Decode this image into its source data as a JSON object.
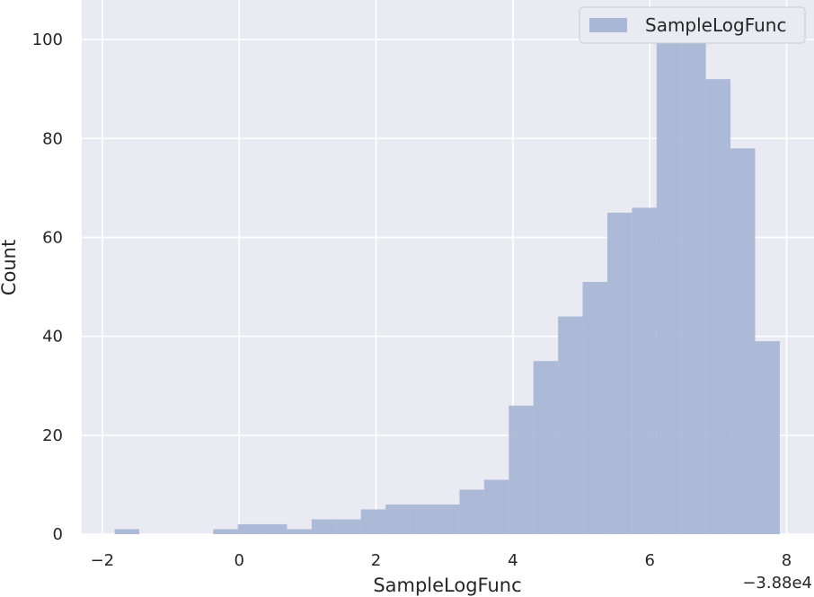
{
  "chart_data": {
    "type": "bar",
    "subtype": "histogram",
    "title": "",
    "xlabel": "SampleLogFunc",
    "ylabel": "Count",
    "x_offset_label": "−3.88e4",
    "xlim": [
      -2.3,
      8.4
    ],
    "ylim": [
      0,
      108
    ],
    "xticks": [
      -2,
      0,
      2,
      4,
      6,
      8
    ],
    "xtick_labels": [
      "−2",
      "0",
      "2",
      "4",
      "6",
      "8"
    ],
    "yticks": [
      0,
      20,
      40,
      60,
      80,
      100
    ],
    "ytick_labels": [
      "0",
      "20",
      "40",
      "60",
      "80",
      "100"
    ],
    "grid": true,
    "legend_position": "top-right",
    "colors": {
      "bar": "#a9b7d6",
      "background": "#eaeaf2",
      "grid": "#ffffff"
    },
    "series": [
      {
        "name": "SampleLogFunc",
        "bin_edges": [
          -1.82,
          -1.46,
          -1.1,
          -0.74,
          -0.38,
          -0.02,
          0.34,
          0.7,
          1.06,
          1.42,
          1.78,
          2.14,
          2.5,
          2.86,
          3.22,
          3.58,
          3.94,
          4.3,
          4.66,
          5.02,
          5.38,
          5.74,
          6.1,
          6.46,
          6.82,
          7.18,
          7.54,
          7.9
        ],
        "counts": [
          1,
          0,
          0,
          0,
          1,
          2,
          2,
          1,
          3,
          3,
          5,
          6,
          6,
          6,
          9,
          11,
          26,
          35,
          44,
          51,
          65,
          66,
          106,
          106,
          92,
          78,
          39
        ]
      }
    ]
  }
}
